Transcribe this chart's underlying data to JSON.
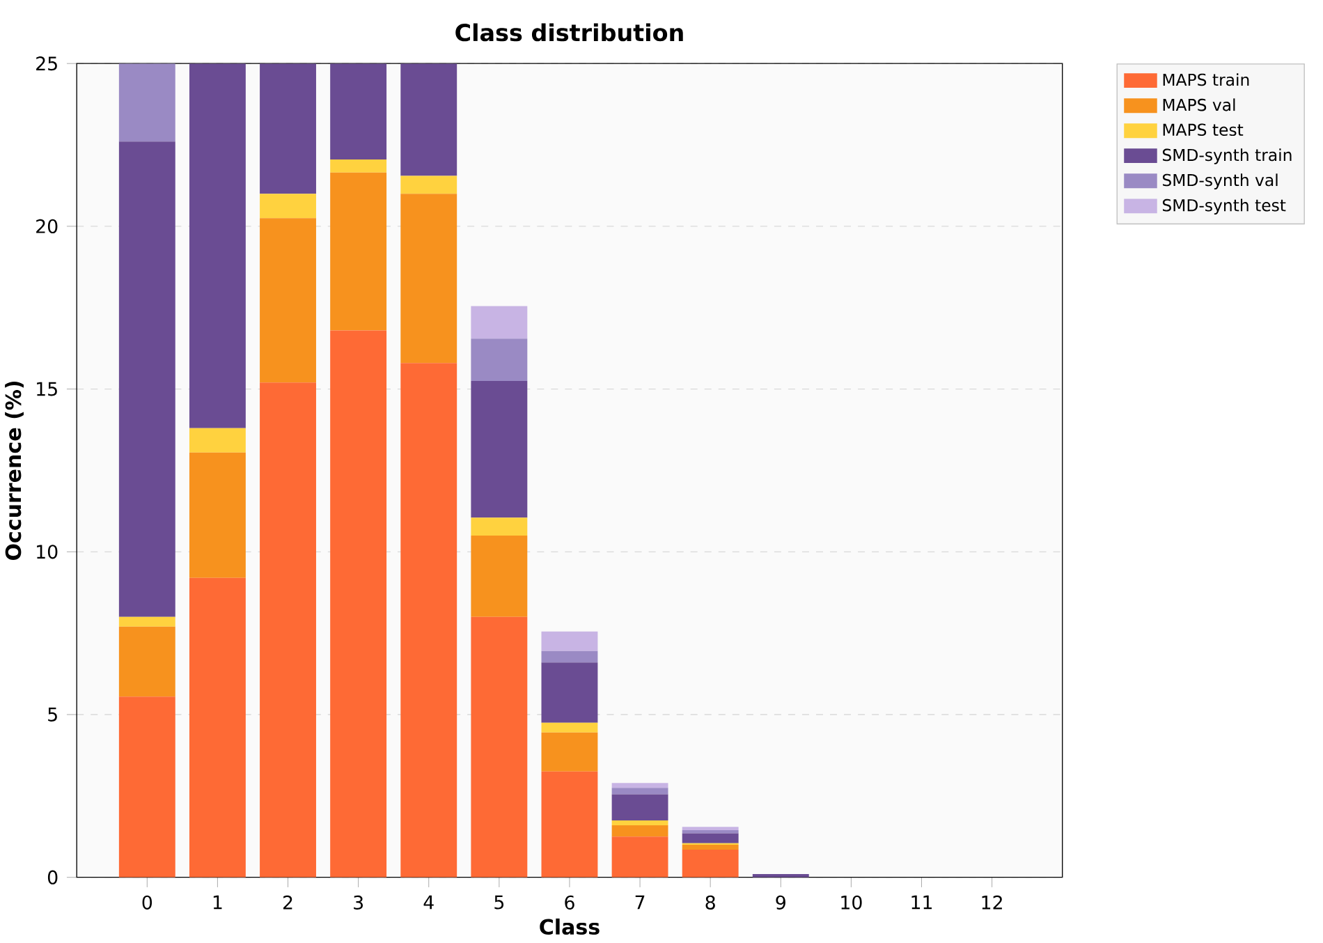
{
  "chart_data": {
    "type": "bar",
    "title": "Class distribution",
    "xlabel": "Class",
    "ylabel": "Occurrence (%)",
    "categories": [
      "0",
      "1",
      "2",
      "3",
      "4",
      "5",
      "6",
      "7",
      "8",
      "9",
      "10",
      "11",
      "12"
    ],
    "stacked": true,
    "ylim": [
      0,
      25
    ],
    "yticks": [
      0,
      5,
      10,
      15,
      20,
      25
    ],
    "grid": "y",
    "legend": "top right",
    "series": [
      {
        "name": "MAPS train",
        "color": "#fe6a35",
        "values": [
          5.55,
          9.2,
          15.2,
          16.8,
          15.8,
          8.0,
          3.25,
          1.25,
          0.85,
          0,
          0,
          0,
          0
        ]
      },
      {
        "name": "MAPS val",
        "color": "#f7921e",
        "values": [
          2.15,
          3.85,
          5.05,
          4.85,
          5.2,
          2.5,
          1.2,
          0.35,
          0.15,
          0,
          0,
          0,
          0
        ]
      },
      {
        "name": "MAPS test",
        "color": "#ffd23f",
        "values": [
          0.3,
          0.75,
          0.75,
          0.4,
          0.55,
          0.55,
          0.3,
          0.15,
          0.05,
          0,
          0,
          0,
          0
        ]
      },
      {
        "name": "SMD-synth train",
        "color": "#6a4c93",
        "values": [
          14.6,
          11.2,
          4.0,
          2.95,
          3.45,
          4.2,
          1.85,
          0.8,
          0.3,
          0.1,
          0,
          0,
          0
        ]
      },
      {
        "name": "SMD-synth val",
        "color": "#9a8ac4",
        "values": [
          2.4,
          null,
          null,
          null,
          null,
          1.3,
          0.35,
          0.2,
          0.1,
          0,
          0,
          0,
          0
        ]
      },
      {
        "name": "SMD-synth test",
        "color": "#c8b4e4",
        "values": [
          null,
          null,
          null,
          null,
          null,
          1.0,
          0.6,
          0.15,
          0.1,
          0,
          0,
          0,
          0
        ]
      }
    ]
  }
}
